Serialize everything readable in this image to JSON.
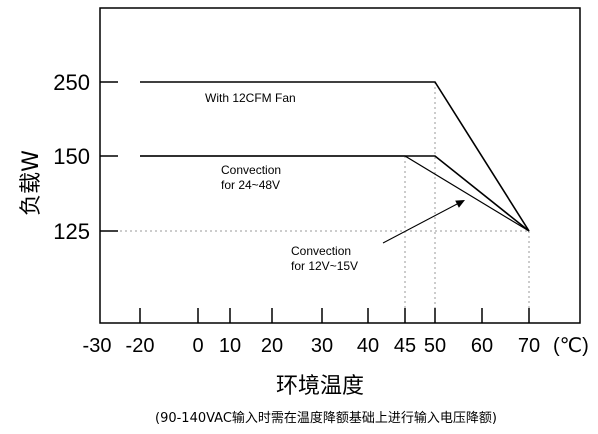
{
  "chart_data": {
    "type": "line",
    "xlabel": "环境温度",
    "ylabel": "负载W",
    "unit_label": "(℃)",
    "note": "(90-140VAC输入时需在温度降额基础上进行输入电压降额)",
    "x_ticks": [
      "-30",
      "-20",
      "0",
      "10",
      "20",
      "30",
      "40",
      "45",
      "50",
      "60",
      "70"
    ],
    "y_ticks": [
      "250",
      "150",
      "125"
    ],
    "xlim": [
      -30,
      70
    ],
    "grid": false,
    "series": [
      {
        "name": "With 12CFM Fan",
        "x": [
          -20,
          50,
          70
        ],
        "y": [
          250,
          250,
          125
        ]
      },
      {
        "name": "Convection for 24~48V",
        "x": [
          -20,
          45,
          50,
          70
        ],
        "y": [
          150,
          150,
          150,
          125
        ]
      },
      {
        "name": "Convection for 12V~15V",
        "x": [
          -20,
          45,
          70
        ],
        "y": [
          150,
          150,
          125
        ]
      }
    ],
    "annotations": [
      {
        "lines": [
          "With 12CFM Fan"
        ]
      },
      {
        "lines": [
          "Convection",
          "for 24~48V"
        ]
      },
      {
        "lines": [
          "Convection",
          "for 12V~15V"
        ]
      }
    ],
    "reference_lines": [
      {
        "orientation": "vertical",
        "x": 45
      },
      {
        "orientation": "vertical",
        "x": 50
      },
      {
        "orientation": "vertical",
        "x": 70
      },
      {
        "orientation": "horizontal",
        "y": 125
      }
    ]
  }
}
